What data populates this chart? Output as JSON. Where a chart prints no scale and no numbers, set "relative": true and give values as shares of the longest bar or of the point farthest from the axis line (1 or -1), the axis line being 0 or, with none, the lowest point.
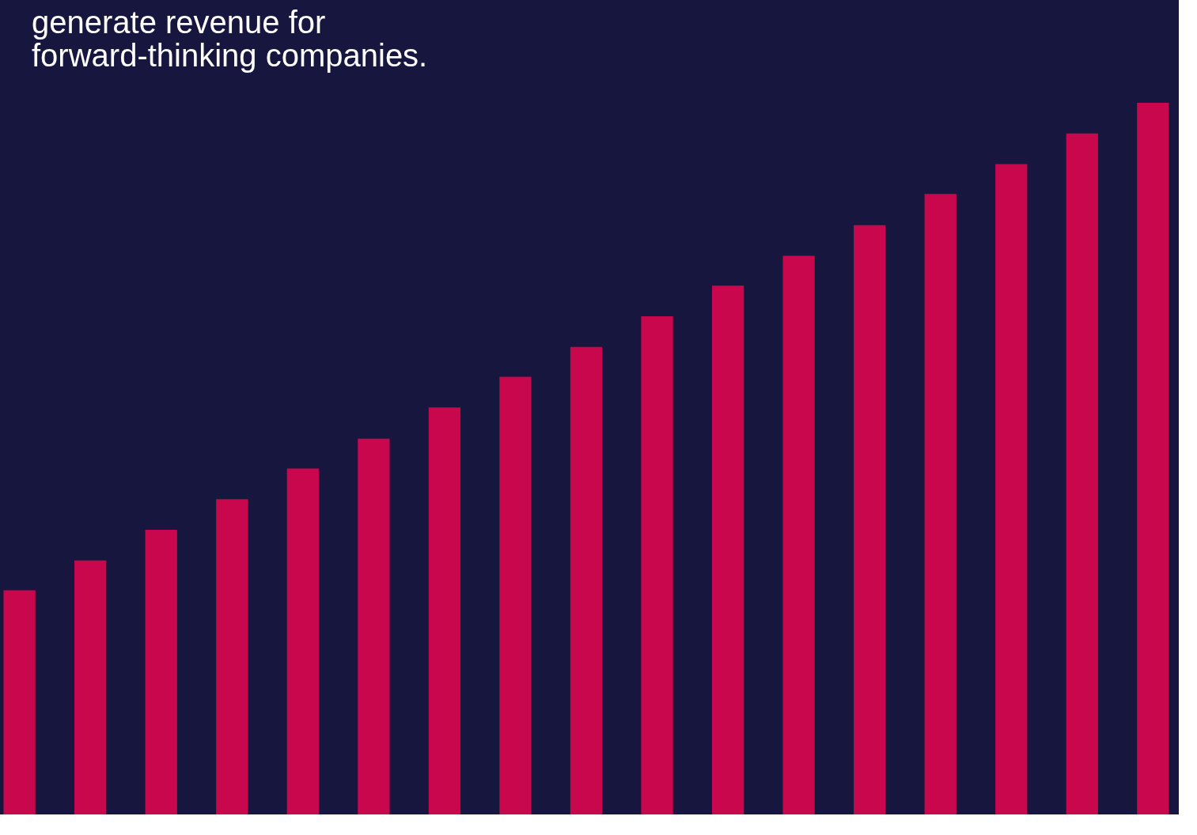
{
  "chart_data": {
    "type": "bar",
    "relative": true,
    "title": "generate revenue for\nforward-thinking companies.",
    "categories": [
      null,
      null,
      null,
      null,
      null,
      null,
      null,
      null,
      null,
      null,
      null,
      null,
      null,
      null,
      null,
      null,
      null
    ],
    "values": [
      0.315,
      0.357,
      0.4,
      0.443,
      0.486,
      0.528,
      0.572,
      0.615,
      0.657,
      0.7,
      0.743,
      0.785,
      0.828,
      0.872,
      0.914,
      0.957,
      1
    ],
    "color": "#c8074c",
    "tick_labels": false
  }
}
